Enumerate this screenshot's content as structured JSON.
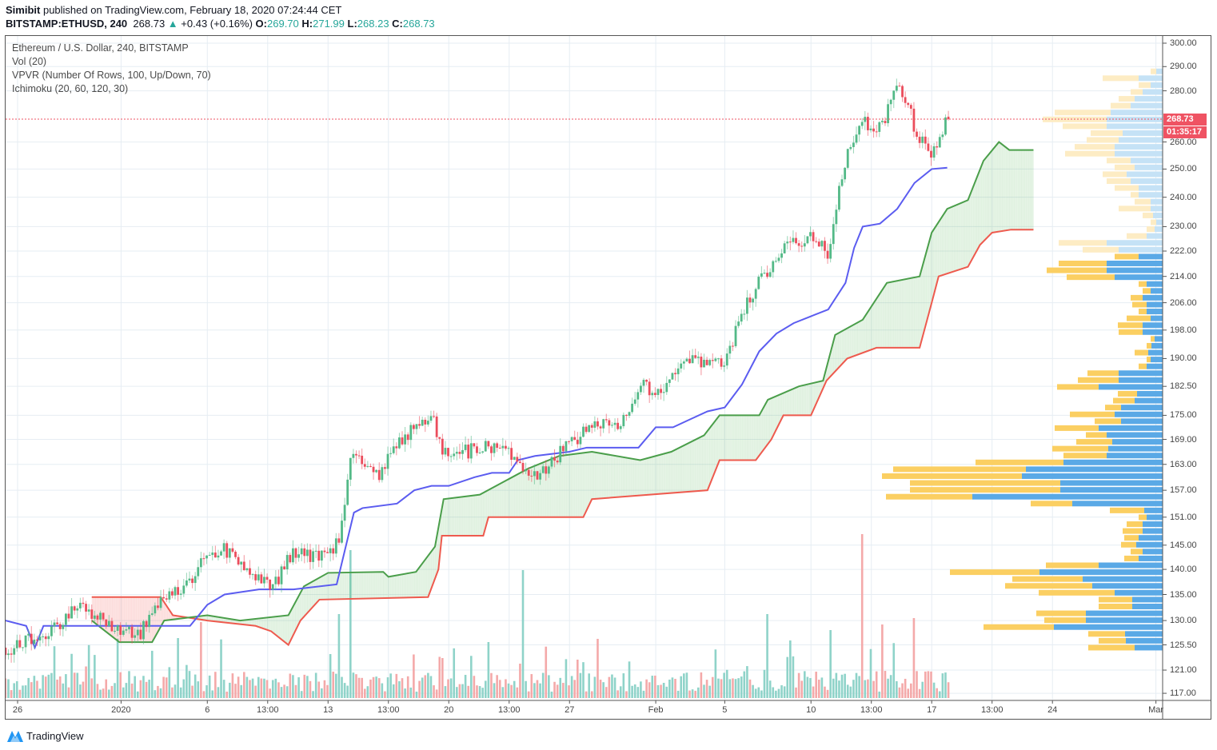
{
  "header": {
    "author": "Simibit",
    "published": "published on TradingView.com, February 18, 2020 07:24:44 CET",
    "symbol": "BITSTAMP:ETHUSD, 240",
    "last": "268.73",
    "change": "+0.43 (+0.16%)",
    "o_label": "O:",
    "o": "269.70",
    "h_label": "H:",
    "h": "271.99",
    "l_label": "L:",
    "l": "268.23",
    "c_label": "C:",
    "c": "268.73"
  },
  "legend": [
    "Ethereum / U.S. Dollar, 240, BITSTAMP",
    "Vol (20)",
    "VPVR (Number Of Rows, 100, Up/Down, 70)",
    "Ichimoku (20, 60, 120, 30)"
  ],
  "price_label": "268.73",
  "countdown": "01:35:17",
  "footer": {
    "brand": "TradingView"
  },
  "colors": {
    "up": "#53b987",
    "down": "#eb4d5c",
    "tenkan": "#5b5cf0",
    "spanA": "#4a9e4a",
    "spanB": "#ee5a4e",
    "vol_up": "#8fd3c9",
    "vol_down": "#f4a9a9",
    "vp_up": "#5aa9e6",
    "vp_down": "#fbcf62",
    "vp_up_light": "#c5e2f6",
    "vp_down_light": "#fdecc4"
  },
  "chart_data": {
    "type": "candlestick",
    "timeframe": "240",
    "y_ticks": [
      "300.00",
      "290.00",
      "280.00",
      "260.00",
      "250.00",
      "240.00",
      "230.00",
      "222.00",
      "214.00",
      "206.00",
      "198.00",
      "190.00",
      "182.50",
      "175.00",
      "169.00",
      "163.00",
      "157.00",
      "151.00",
      "145.00",
      "140.00",
      "135.00",
      "130.00",
      "125.50",
      "121.00",
      "117.00"
    ],
    "x_ticks": [
      {
        "label": "26",
        "day": 0
      },
      {
        "label": "2020",
        "day": 6
      },
      {
        "label": "6",
        "day": 11
      },
      {
        "label": "13:00",
        "day": 14.5
      },
      {
        "label": "13",
        "day": 18
      },
      {
        "label": "13:00",
        "day": 21.5
      },
      {
        "label": "20",
        "day": 25
      },
      {
        "label": "13:00",
        "day": 28.5
      },
      {
        "label": "27",
        "day": 32
      },
      {
        "label": "Feb",
        "day": 37
      },
      {
        "label": "5",
        "day": 41
      },
      {
        "label": "10",
        "day": 46
      },
      {
        "label": "13:00",
        "day": 49.5
      },
      {
        "label": "17",
        "day": 53
      },
      {
        "label": "13:00",
        "day": 56.5
      },
      {
        "label": "24",
        "day": 60
      },
      {
        "label": "Mar",
        "day": 66
      }
    ],
    "x_unit": "days since Dec 26 2019",
    "close_path": [
      [
        -0.7,
        125
      ],
      [
        0,
        125
      ],
      [
        1,
        127
      ],
      [
        2,
        128
      ],
      [
        3.5,
        133
      ],
      [
        4,
        132
      ],
      [
        5,
        130
      ],
      [
        6,
        128
      ],
      [
        7,
        127
      ],
      [
        7.5,
        130
      ],
      [
        8,
        133
      ],
      [
        9,
        135
      ],
      [
        10,
        138
      ],
      [
        11,
        143
      ],
      [
        12,
        144
      ],
      [
        13,
        141
      ],
      [
        14,
        138
      ],
      [
        15,
        137
      ],
      [
        16,
        144
      ],
      [
        17,
        143
      ],
      [
        18,
        142
      ],
      [
        18.7,
        147
      ],
      [
        19.2,
        162
      ],
      [
        19.5,
        166
      ],
      [
        20,
        163
      ],
      [
        21,
        160
      ],
      [
        22,
        168
      ],
      [
        23,
        172
      ],
      [
        24,
        175
      ],
      [
        24.5,
        167
      ],
      [
        25,
        165
      ],
      [
        26,
        166
      ],
      [
        27,
        167
      ],
      [
        28,
        168
      ],
      [
        29,
        162
      ],
      [
        30,
        160
      ],
      [
        31,
        164
      ],
      [
        32,
        168
      ],
      [
        33,
        171
      ],
      [
        34,
        174
      ],
      [
        35,
        173
      ],
      [
        36,
        183
      ],
      [
        37,
        181
      ],
      [
        38,
        185
      ],
      [
        39,
        190
      ],
      [
        40,
        188
      ],
      [
        41,
        189
      ],
      [
        42,
        203
      ],
      [
        43,
        212
      ],
      [
        44,
        220
      ],
      [
        45,
        225
      ],
      [
        46,
        227
      ],
      [
        47,
        221
      ],
      [
        47.5,
        238
      ],
      [
        48,
        252
      ],
      [
        48.5,
        262
      ],
      [
        49,
        267
      ],
      [
        50,
        265
      ],
      [
        51,
        282
      ],
      [
        51.7,
        275
      ],
      [
        52,
        265
      ],
      [
        53,
        254
      ],
      [
        53.3,
        258
      ],
      [
        53.9,
        268.73
      ]
    ],
    "last_candle": {
      "open": 269.7,
      "high": 271.99,
      "low": 268.23,
      "close": 268.73
    },
    "ichimoku": {
      "conversion": [
        [
          -0.7,
          130
        ],
        [
          0.5,
          129
        ],
        [
          1,
          125
        ],
        [
          1.5,
          129
        ],
        [
          10,
          129
        ],
        [
          11,
          133
        ],
        [
          12,
          135
        ],
        [
          14,
          136
        ],
        [
          16,
          136
        ],
        [
          18.5,
          137
        ],
        [
          19.5,
          152
        ],
        [
          20,
          153
        ],
        [
          22,
          154
        ],
        [
          23,
          157
        ],
        [
          24,
          158
        ],
        [
          25,
          158
        ],
        [
          26.5,
          160
        ],
        [
          27.5,
          161
        ],
        [
          28.5,
          161
        ],
        [
          29,
          164
        ],
        [
          30,
          165
        ],
        [
          32,
          166
        ],
        [
          33,
          167
        ],
        [
          36,
          167
        ],
        [
          37,
          172
        ],
        [
          38,
          172
        ],
        [
          39,
          174
        ],
        [
          40,
          176
        ],
        [
          41,
          177
        ],
        [
          42,
          183
        ],
        [
          43,
          192
        ],
        [
          44,
          197
        ],
        [
          45,
          200
        ],
        [
          46,
          202
        ],
        [
          47,
          204
        ],
        [
          48,
          212
        ],
        [
          48.5,
          223
        ],
        [
          49,
          230
        ],
        [
          50,
          231
        ],
        [
          51,
          236
        ],
        [
          52,
          245
        ],
        [
          53,
          250
        ],
        [
          53.9,
          250.5
        ]
      ],
      "span_a": [
        [
          4.3,
          130
        ],
        [
          5.9,
          126
        ],
        [
          7.8,
          126
        ],
        [
          8.5,
          130
        ],
        [
          11,
          131
        ],
        [
          12.9,
          130
        ],
        [
          15.7,
          131
        ],
        [
          16.6,
          136.6
        ],
        [
          18,
          139.3
        ],
        [
          21.2,
          139.5
        ],
        [
          21.5,
          138.5
        ],
        [
          23.1,
          139.5
        ],
        [
          24.2,
          144.7
        ],
        [
          24.7,
          155
        ],
        [
          26.8,
          156
        ],
        [
          29.6,
          162
        ],
        [
          31.4,
          165
        ],
        [
          33.3,
          166
        ],
        [
          36.1,
          164
        ],
        [
          37.9,
          166
        ],
        [
          39.8,
          170
        ],
        [
          40.7,
          175
        ],
        [
          43,
          175
        ],
        [
          43.5,
          179
        ],
        [
          45.3,
          182.5
        ],
        [
          46.7,
          184
        ],
        [
          47.4,
          196.6
        ],
        [
          49,
          201
        ],
        [
          50.4,
          212
        ],
        [
          52.3,
          214
        ],
        [
          53,
          228
        ],
        [
          53.9,
          236
        ],
        [
          55.1,
          239
        ],
        [
          56,
          253
        ],
        [
          56.9,
          260
        ],
        [
          57.5,
          257
        ],
        [
          58.9,
          257
        ]
      ],
      "span_b": [
        [
          4.3,
          134.5
        ],
        [
          8.3,
          134.5
        ],
        [
          9,
          131
        ],
        [
          11,
          130
        ],
        [
          13.8,
          129
        ],
        [
          14.7,
          128
        ],
        [
          15.7,
          125.5
        ],
        [
          16.4,
          130
        ],
        [
          17.5,
          134
        ],
        [
          23.8,
          134.5
        ],
        [
          24.4,
          140
        ],
        [
          24.6,
          147
        ],
        [
          27,
          147
        ],
        [
          27.3,
          151
        ],
        [
          32.8,
          151
        ],
        [
          33.3,
          155
        ],
        [
          40,
          157
        ],
        [
          40.7,
          164
        ],
        [
          42.8,
          164
        ],
        [
          43.7,
          169
        ],
        [
          44.4,
          175
        ],
        [
          46.0,
          175
        ],
        [
          46.9,
          184
        ],
        [
          48.1,
          190
        ],
        [
          49.8,
          193
        ],
        [
          52.3,
          193
        ],
        [
          53,
          206
        ],
        [
          53.4,
          214
        ],
        [
          55.1,
          217
        ],
        [
          55.8,
          224
        ],
        [
          56.5,
          228
        ],
        [
          57.6,
          229
        ],
        [
          58.9,
          229
        ]
      ]
    },
    "volume": {
      "base_range": [
        8,
        34
      ],
      "spikes": [
        [
          19.3,
          185,
          "up"
        ],
        [
          29.3,
          160,
          "up"
        ],
        [
          48.9,
          205,
          "down"
        ],
        [
          10.6,
          95,
          "down"
        ],
        [
          18.6,
          105,
          "up"
        ],
        [
          43.5,
          105,
          "up"
        ],
        [
          51.9,
          100,
          "down"
        ],
        [
          47.2,
          85,
          "up"
        ],
        [
          50.2,
          92,
          "down"
        ],
        [
          9.3,
          75,
          "up"
        ],
        [
          27.3,
          70,
          "up"
        ],
        [
          24.6,
          50,
          "down"
        ],
        [
          44.8,
          72,
          "up"
        ]
      ]
    },
    "vpvr": {
      "price_centers": [
        125,
        288
      ],
      "value_area_rows": 58,
      "rows": [
        [
          35,
          58
        ],
        [
          46,
          34
        ],
        [
          47,
          46
        ],
        [
          136,
          88
        ],
        [
          96,
          52
        ],
        [
          96,
          62
        ],
        [
          38,
          42
        ],
        [
          38,
          42
        ],
        [
          60,
          95
        ],
        [
          88,
          109
        ],
        [
          100,
          88
        ],
        [
          154,
          112
        ],
        [
          80,
          66
        ],
        [
          30,
          18
        ],
        [
          25,
          15
        ],
        [
          33,
          19
        ],
        [
          30,
          18
        ],
        [
          25,
          25
        ],
        [
          25,
          20
        ],
        [
          20,
          10
        ],
        [
          23,
          43
        ],
        [
          113,
          52
        ],
        [
          238,
          108
        ],
        [
          128,
          188
        ],
        [
          128,
          188
        ],
        [
          176,
          175
        ],
        [
          171,
          166
        ],
        [
          124,
          110
        ],
        [
          70,
          54
        ],
        [
          68,
          70
        ],
        [
          63,
          45
        ],
        [
          70,
          26
        ],
        [
          80,
          55
        ],
        [
          52,
          33
        ],
        [
          60,
          56
        ],
        [
          52,
          20
        ],
        [
          35,
          27
        ],
        [
          32,
          24
        ],
        [
          80,
          52
        ],
        [
          55,
          51
        ],
        [
          55,
          39
        ],
        [
          20,
          10
        ],
        [
          15,
          5
        ],
        [
          18,
          17
        ],
        [
          14,
          6
        ],
        [
          10,
          5
        ],
        [
          25,
          30
        ],
        [
          25,
          31
        ],
        [
          15,
          30
        ],
        [
          20,
          10
        ],
        [
          20,
          18
        ],
        [
          25,
          15
        ],
        [
          15,
          10
        ],
        [
          20,
          10
        ],
        [
          60,
          60
        ],
        [
          70,
          75
        ],
        [
          70,
          60
        ],
        [
          30,
          30
        ],
        [
          55,
          45
        ],
        [
          70,
          60
        ],
        [
          20,
          25
        ],
        [
          10,
          10
        ],
        [
          8,
          7
        ],
        [
          12,
          13
        ],
        [
          15,
          40
        ],
        [
          15,
          20
        ],
        [
          30,
          10
        ],
        [
          30,
          30
        ],
        [
          40,
          30
        ],
        [
          45,
          30
        ],
        [
          35,
          25
        ],
        [
          40,
          30
        ],
        [
          60,
          62
        ],
        [
          60,
          50
        ],
        [
          55,
          40
        ],
        [
          50,
          40
        ],
        [
          70,
          55
        ],
        [
          70,
          80
        ],
        [
          65,
          70
        ],
        [
          40,
          25
        ],
        [
          35,
          20
        ],
        [
          25,
          15
        ],
        [
          15,
          15
        ],
        [
          30,
          45
        ],
        [
          8,
          7
        ]
      ]
    }
  }
}
